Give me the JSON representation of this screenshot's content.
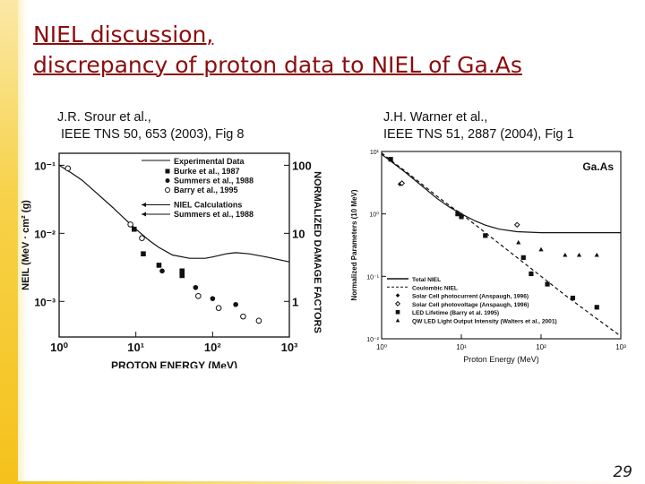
{
  "title": {
    "line1": "NIEL discussion,",
    "line2": "discrepancy of proton data to NIEL of Ga.As"
  },
  "refs": {
    "left": [
      "J.R. Srour et al.,",
      "IEEE TNS 50, 653 (2003), Fig 8"
    ],
    "right": [
      "J.H. Warner et al.,",
      "IEEE TNS 51, 2887 (2004), Fig 1"
    ]
  },
  "page_number": "29",
  "colors": {
    "title": "#8b0d0d",
    "accent_bar": "#f5c21b"
  },
  "chart_data": [
    {
      "type": "scatter",
      "xlabel": "PROTON ENERGY (MeV)",
      "ylabel": "NEIL (MeV · cm² (g)",
      "y2label": "NORMALIZED DAMAGE FACTORS",
      "xscale": "log",
      "yscale": "log",
      "xlim": [
        1,
        1000
      ],
      "ylim": [
        0.0003,
        0.15
      ],
      "xticks": [
        {
          "v": 1,
          "label": "10⁰"
        },
        {
          "v": 10,
          "label": "10¹"
        },
        {
          "v": 100,
          "label": "10²"
        },
        {
          "v": 1000,
          "label": "10³"
        }
      ],
      "yticks": [
        {
          "v": 0.1,
          "label": "10⁻¹"
        },
        {
          "v": 0.01,
          "label": "10⁻²"
        },
        {
          "v": 0.001,
          "label": "10⁻³"
        }
      ],
      "y2ticks": [
        {
          "v": 0.1,
          "label": "100"
        },
        {
          "v": 0.01,
          "label": "10"
        },
        {
          "v": 0.001,
          "label": "1"
        }
      ],
      "legend": {
        "position": "top-right",
        "header": "Experimental Data",
        "entries": [
          {
            "label": "Burke et al., 1987",
            "marker": "square"
          },
          {
            "label": "Summers et al., 1988",
            "marker": "circle-filled"
          },
          {
            "label": "Barry et al., 1995",
            "marker": "circle-open"
          },
          {
            "label": "NIEL Calculations",
            "marker": "arrow-line"
          },
          {
            "label": "Summers et al., 1988",
            "marker": "arrow-line"
          }
        ]
      },
      "niel_curve": {
        "x": [
          1.0,
          1.5,
          2,
          3,
          5,
          8,
          10,
          15,
          20,
          30,
          50,
          80,
          100,
          150,
          200,
          300,
          500,
          1000
        ],
        "y": [
          0.1,
          0.075,
          0.06,
          0.04,
          0.024,
          0.0145,
          0.0115,
          0.0078,
          0.0062,
          0.0048,
          0.0043,
          0.0043,
          0.0045,
          0.005,
          0.0052,
          0.005,
          0.0045,
          0.0038
        ]
      },
      "series": [
        {
          "name": "Burke et al., 1987",
          "marker": "square",
          "x": [
            9.5,
            12.5,
            20,
            40,
            40
          ],
          "y": [
            0.0115,
            0.005,
            0.0034,
            0.0028,
            0.0024
          ]
        },
        {
          "name": "Summers et al., 1988",
          "marker": "circle-filled",
          "x": [
            22,
            60,
            100,
            200
          ],
          "y": [
            0.0028,
            0.0016,
            0.0011,
            0.0009
          ]
        },
        {
          "name": "Barry et al., 1995",
          "marker": "circle-open",
          "x": [
            1.3,
            8.5,
            12,
            65,
            120,
            250,
            400
          ],
          "y": [
            0.09,
            0.0135,
            0.0085,
            0.0012,
            0.0008,
            0.0006,
            0.00052
          ]
        }
      ]
    },
    {
      "type": "scatter",
      "title": "Ga.As",
      "xlabel": "Proton Energy (MeV)",
      "ylabel": "Normalized Parameters (10 MeV)",
      "xscale": "log",
      "yscale": "log",
      "xlim": [
        1,
        1000
      ],
      "ylim": [
        0.01,
        10
      ],
      "xticks": [
        {
          "v": 1,
          "label": "10⁰"
        },
        {
          "v": 10,
          "label": "10¹"
        },
        {
          "v": 100,
          "label": "10²"
        },
        {
          "v": 1000,
          "label": "10³"
        }
      ],
      "yticks": [
        {
          "v": 10,
          "label": "10¹"
        },
        {
          "v": 1,
          "label": "10⁰"
        },
        {
          "v": 0.1,
          "label": "10⁻¹"
        },
        {
          "v": 0.01,
          "label": "10⁻²"
        }
      ],
      "legend": {
        "position": "bottom-right",
        "entries": [
          {
            "label": "Total NIEL",
            "marker": "solid-line"
          },
          {
            "label": "Coulombic NIEL",
            "marker": "dashed-line"
          },
          {
            "label": "Solar Cell photocurrent (Anspaugh, 1996)",
            "marker": "diamond-filled"
          },
          {
            "label": "Solar Cell photovoltage (Anspaugh, 1996)",
            "marker": "diamond-open"
          },
          {
            "label": "LED Lifetime (Barry et al. 1995)",
            "marker": "square"
          },
          {
            "label": "QW LED Light Output Intensity (Walters et al., 2001)",
            "marker": "triangle"
          }
        ]
      },
      "total_niel": {
        "x": [
          1,
          1.5,
          2,
          3,
          5,
          7,
          10,
          15,
          20,
          30,
          50,
          100,
          200,
          500,
          1000
        ],
        "y": [
          9,
          6.1,
          4.6,
          3.0,
          1.75,
          1.3,
          1.0,
          0.77,
          0.66,
          0.57,
          0.52,
          0.5,
          0.5,
          0.5,
          0.5
        ]
      },
      "coulombic_niel": {
        "x": [
          1,
          1.5,
          2,
          3,
          5,
          7,
          10,
          20,
          50,
          100,
          200,
          500,
          1000
        ],
        "y": [
          9.5,
          6.3,
          4.8,
          3.2,
          1.9,
          1.38,
          1.0,
          0.5,
          0.2,
          0.1,
          0.05,
          0.021,
          0.011
        ]
      },
      "series": [
        {
          "name": "Solar Cell photocurrent (Anspaugh, 1996)",
          "marker": "diamond-filled",
          "x": [
            1.7,
            9,
            10
          ],
          "y": [
            3.0,
            1.05,
            0.97
          ]
        },
        {
          "name": "Solar Cell photovoltage (Anspaugh, 1996)",
          "marker": "diamond-open",
          "x": [
            1.8,
            50
          ],
          "y": [
            3.1,
            0.67
          ]
        },
        {
          "name": "LED Lifetime (Barry et al. 1995)",
          "marker": "square",
          "x": [
            1.3,
            9,
            10,
            20,
            60,
            75,
            120,
            250,
            500
          ],
          "y": [
            7.5,
            1.0,
            0.9,
            0.45,
            0.2,
            0.11,
            0.075,
            0.045,
            0.032
          ]
        },
        {
          "name": "QW LED Light Output Intensity (Walters et al., 2001)",
          "marker": "triangle",
          "x": [
            52,
            100,
            200,
            300,
            500
          ],
          "y": [
            0.35,
            0.27,
            0.22,
            0.22,
            0.22
          ]
        }
      ]
    }
  ]
}
